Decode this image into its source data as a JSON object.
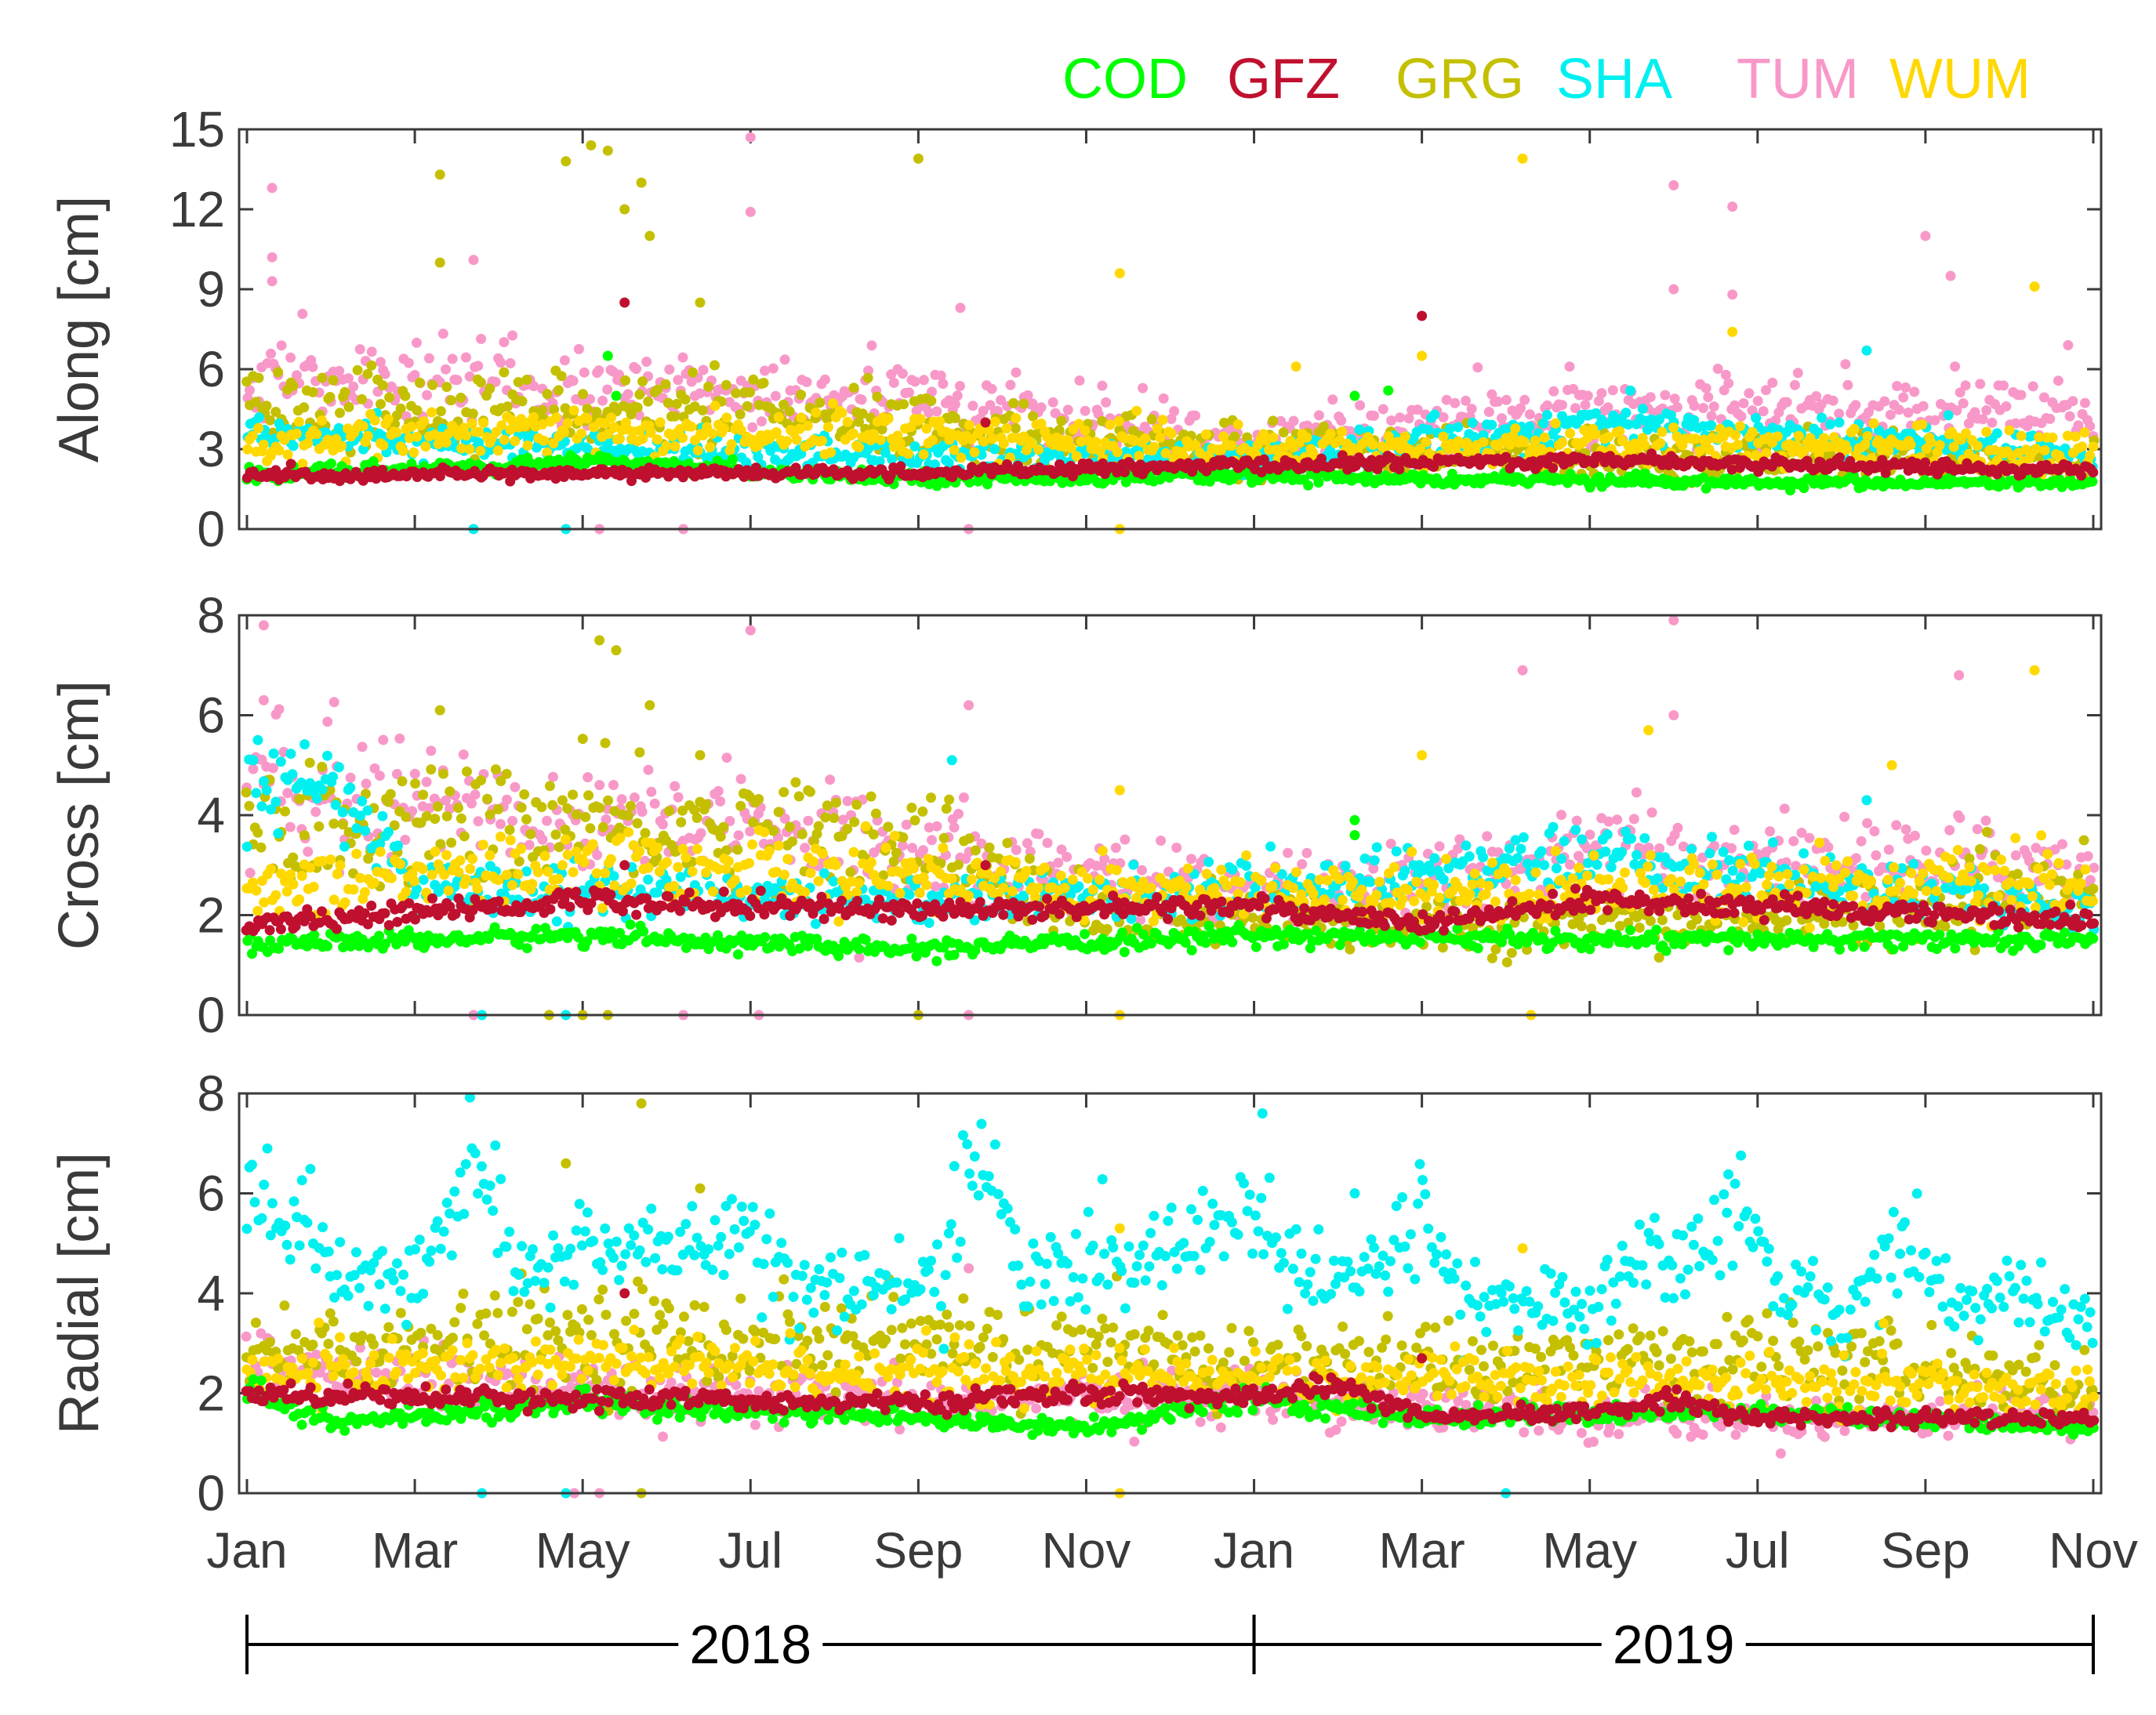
{
  "chart_data": {
    "type": "scatter",
    "legend": {
      "placement": "top-right",
      "entries": [
        {
          "name": "COD",
          "color": "#00ff00"
        },
        {
          "name": "GFZ",
          "color": "#c0102f"
        },
        {
          "name": "GRG",
          "color": "#c4c000"
        },
        {
          "name": "SHA",
          "color": "#00f0f0"
        },
        {
          "name": "TUM",
          "color": "#f898c8"
        },
        {
          "name": "WUM",
          "color": "#ffd800"
        }
      ]
    },
    "xaxis": {
      "unit": "month index since Jan 2018",
      "range": [
        0,
        22
      ],
      "ticks": [
        0,
        2,
        4,
        6,
        8,
        10,
        12,
        14,
        16,
        18,
        20,
        22
      ],
      "tick_labels": [
        "Jan",
        "Mar",
        "May",
        "Jul",
        "Sep",
        "Nov",
        "Jan",
        "Mar",
        "May",
        "Jul",
        "Sep",
        "Nov"
      ],
      "years": [
        {
          "label": "2018",
          "start": 0,
          "end": 12
        },
        {
          "label": "2019",
          "start": 12,
          "end": 22
        }
      ]
    },
    "panels": [
      {
        "name": "along",
        "ylabel": "Along [cm]",
        "ylim": [
          0,
          15
        ],
        "yticks": [
          0,
          3,
          6,
          9,
          12,
          15
        ],
        "ytick_labels": [
          "0",
          "3",
          "6",
          "9",
          "12",
          "15"
        ],
        "typical_levels": {
          "COD": [
            [
              0,
              2.0
            ],
            [
              4,
              2.5
            ],
            [
              8,
              1.9
            ],
            [
              12,
              2.0
            ],
            [
              16,
              1.8
            ],
            [
              22,
              1.7
            ]
          ],
          "GFZ": [
            [
              0,
              2.0
            ],
            [
              4,
              2.1
            ],
            [
              8,
              2.1
            ],
            [
              12,
              2.4
            ],
            [
              16,
              2.6
            ],
            [
              22,
              2.2
            ]
          ],
          "GRG": [
            [
              0,
              4.5
            ],
            [
              4,
              4.6
            ],
            [
              8,
              3.8
            ],
            [
              12,
              3.0
            ],
            [
              16,
              2.8
            ],
            [
              22,
              2.6
            ]
          ],
          "SHA": [
            [
              0,
              3.8
            ],
            [
              4,
              3.0
            ],
            [
              8,
              2.8
            ],
            [
              12,
              2.6
            ],
            [
              16,
              4.0
            ],
            [
              22,
              2.8
            ]
          ],
          "TUM": [
            [
              0,
              5.8
            ],
            [
              4,
              5.2
            ],
            [
              8,
              5.0
            ],
            [
              12,
              3.2
            ],
            [
              16,
              4.6
            ],
            [
              22,
              4.2
            ]
          ],
          "WUM": [
            [
              0,
              3.2
            ],
            [
              4,
              3.6
            ],
            [
              8,
              3.6
            ],
            [
              12,
              3.0
            ],
            [
              16,
              3.2
            ],
            [
              22,
              3.0
            ]
          ]
        },
        "outliers": {
          "COD": [
            [
              4.3,
              6.5
            ],
            [
              4.4,
              5.0
            ],
            [
              13.2,
              5.0
            ],
            [
              13.6,
              5.2
            ]
          ],
          "GFZ": [
            [
              4.5,
              8.5
            ],
            [
              8.8,
              4.0
            ],
            [
              14.0,
              8.0
            ]
          ],
          "GRG": [
            [
              2.3,
              13.3
            ],
            [
              4.1,
              14.4
            ],
            [
              4.3,
              14.2
            ],
            [
              4.5,
              12.0
            ],
            [
              4.7,
              13.0
            ],
            [
              4.8,
              11.0
            ],
            [
              3.8,
              13.8
            ],
            [
              2.3,
              10.0
            ],
            [
              8.0,
              13.9
            ],
            [
              5.4,
              8.5
            ]
          ],
          "SHA": [
            [
              2.7,
              0.0
            ],
            [
              3.8,
              0.0
            ],
            [
              19.3,
              6.7
            ]
          ],
          "TUM": [
            [
              0.3,
              12.8
            ],
            [
              0.3,
              10.2
            ],
            [
              0.3,
              9.3
            ],
            [
              2.7,
              10.1
            ],
            [
              6.0,
              14.7
            ],
            [
              6.0,
              11.9
            ],
            [
              8.5,
              8.3
            ],
            [
              17.0,
              12.9
            ],
            [
              17.0,
              9.0
            ],
            [
              17.7,
              12.1
            ],
            [
              17.7,
              8.8
            ],
            [
              20.0,
              11.0
            ],
            [
              20.3,
              9.5
            ],
            [
              21.7,
              6.9
            ],
            [
              2.7,
              0.0
            ],
            [
              4.2,
              0.0
            ],
            [
              5.2,
              0.0
            ],
            [
              8.6,
              0.0
            ]
          ],
          "WUM": [
            [
              10.4,
              9.6
            ],
            [
              10.4,
              0.0
            ],
            [
              15.2,
              13.9
            ],
            [
              12.5,
              6.1
            ],
            [
              14.0,
              6.5
            ],
            [
              21.3,
              9.1
            ],
            [
              17.7,
              7.4
            ]
          ]
        }
      },
      {
        "name": "cross",
        "ylabel": "Cross [cm]",
        "ylim": [
          0,
          8
        ],
        "yticks": [
          0,
          2,
          4,
          6,
          8
        ],
        "ytick_labels": [
          "0",
          "2",
          "4",
          "6",
          "8"
        ],
        "typical_levels": {
          "COD": [
            [
              0,
              1.4
            ],
            [
              4,
              1.6
            ],
            [
              8,
              1.3
            ],
            [
              12,
              1.6
            ],
            [
              16,
              1.5
            ],
            [
              22,
              1.5
            ]
          ],
          "GFZ": [
            [
              0,
              1.8
            ],
            [
              4,
              2.3
            ],
            [
              8,
              2.1
            ],
            [
              12,
              2.2
            ],
            [
              14,
              1.8
            ],
            [
              16,
              2.3
            ],
            [
              22,
              1.9
            ]
          ],
          "GRG": [
            [
              0,
              3.8
            ],
            [
              4,
              3.8
            ],
            [
              8,
              3.5
            ],
            [
              10,
              2.0
            ],
            [
              16,
              1.8
            ],
            [
              22,
              2.4
            ]
          ],
          "SHA": [
            [
              0,
              4.6
            ],
            [
              1,
              4.6
            ],
            [
              2,
              2.6
            ],
            [
              8,
              2.3
            ],
            [
              12,
              2.5
            ],
            [
              16,
              3.2
            ],
            [
              22,
              2.1
            ]
          ],
          "TUM": [
            [
              0,
              4.6
            ],
            [
              4,
              4.0
            ],
            [
              8,
              3.4
            ],
            [
              12,
              2.4
            ],
            [
              16,
              3.2
            ],
            [
              22,
              3.0
            ]
          ],
          "WUM": [
            [
              0,
              2.5
            ],
            [
              4,
              3.0
            ],
            [
              8,
              2.8
            ],
            [
              12,
              2.4
            ],
            [
              16,
              2.6
            ],
            [
              22,
              2.6
            ]
          ]
        },
        "outliers": {
          "COD": [
            [
              13.2,
              3.9
            ],
            [
              13.2,
              3.6
            ]
          ],
          "GFZ": [
            [
              4.5,
              3.0
            ],
            [
              8.8,
              3.0
            ]
          ],
          "GRG": [
            [
              4.2,
              7.5
            ],
            [
              4.4,
              7.3
            ],
            [
              2.3,
              6.1
            ],
            [
              4.8,
              6.2
            ],
            [
              5.4,
              5.2
            ],
            [
              4.0,
              0.0
            ],
            [
              4.3,
              0.0
            ],
            [
              8.0,
              0.0
            ],
            [
              3.6,
              0.0
            ]
          ],
          "SHA": [
            [
              2.8,
              0.0
            ],
            [
              3.8,
              0.0
            ],
            [
              8.4,
              5.1
            ],
            [
              19.3,
              4.3
            ]
          ],
          "TUM": [
            [
              0.2,
              7.8
            ],
            [
              0.2,
              6.3
            ],
            [
              6.0,
              7.7
            ],
            [
              8.6,
              6.2
            ],
            [
              15.2,
              6.9
            ],
            [
              17.0,
              7.9
            ],
            [
              17.0,
              6.0
            ],
            [
              20.4,
              6.8
            ],
            [
              2.7,
              0.0
            ],
            [
              5.2,
              0.0
            ],
            [
              6.1,
              0.0
            ],
            [
              8.6,
              0.0
            ]
          ],
          "WUM": [
            [
              10.4,
              4.5
            ],
            [
              14.0,
              5.2
            ],
            [
              16.7,
              5.7
            ],
            [
              21.3,
              6.9
            ],
            [
              19.6,
              5.0
            ],
            [
              10.4,
              0.0
            ],
            [
              15.3,
              0.0
            ]
          ]
        }
      },
      {
        "name": "radial",
        "ylabel": "Radial [cm]",
        "ylim": [
          0,
          8
        ],
        "yticks": [
          0,
          2,
          4,
          6,
          8
        ],
        "ytick_labels": [
          "0",
          "2",
          "4",
          "6",
          "8"
        ],
        "typical_levels": {
          "COD": [
            [
              0,
              2.1
            ],
            [
              1,
              1.4
            ],
            [
              4,
              1.8
            ],
            [
              8,
              1.5
            ],
            [
              10,
              1.3
            ],
            [
              12,
              1.9
            ],
            [
              14,
              1.5
            ],
            [
              16,
              1.6
            ],
            [
              18,
              1.6
            ],
            [
              22,
              1.3
            ]
          ],
          "GFZ": [
            [
              0,
              2.0
            ],
            [
              4,
              1.9
            ],
            [
              8,
              1.8
            ],
            [
              10,
              2.0
            ],
            [
              12,
              1.9
            ],
            [
              13,
              2.2
            ],
            [
              14,
              1.5
            ],
            [
              16,
              1.6
            ],
            [
              17,
              1.9
            ],
            [
              18,
              1.5
            ],
            [
              22,
              1.5
            ]
          ],
          "GRG": [
            [
              0,
              2.9
            ],
            [
              2,
              2.9
            ],
            [
              4,
              3.2
            ],
            [
              8,
              3.0
            ],
            [
              12,
              2.6
            ],
            [
              16,
              2.6
            ],
            [
              18,
              2.8
            ],
            [
              22,
              2.1
            ]
          ],
          "SHA": [
            [
              0,
              5.8
            ],
            [
              0.7,
              5.4
            ],
            [
              1.2,
              4.2
            ],
            [
              2.0,
              4.1
            ],
            [
              2.5,
              6.1
            ],
            [
              2.8,
              6.8
            ],
            [
              3.2,
              4.2
            ],
            [
              4.0,
              5.0
            ],
            [
              5.0,
              4.8
            ],
            [
              6.0,
              5.5
            ],
            [
              6.5,
              4.0
            ],
            [
              7.5,
              4.2
            ],
            [
              8.3,
              4.1
            ],
            [
              8.5,
              6.6
            ],
            [
              8.9,
              6.5
            ],
            [
              9.2,
              4.3
            ],
            [
              10.0,
              4.5
            ],
            [
              11.0,
              4.8
            ],
            [
              11.9,
              5.9
            ],
            [
              12.5,
              4.2
            ],
            [
              13.5,
              4.4
            ],
            [
              14.0,
              5.8
            ],
            [
              14.5,
              3.8
            ],
            [
              15.0,
              3.9
            ],
            [
              16.0,
              3.6
            ],
            [
              16.7,
              5.0
            ],
            [
              17.0,
              4.5
            ],
            [
              17.8,
              5.7
            ],
            [
              18.3,
              4.2
            ],
            [
              19.0,
              3.5
            ],
            [
              19.8,
              5.3
            ],
            [
              20.3,
              3.7
            ],
            [
              21.0,
              4.0
            ],
            [
              21.5,
              3.6
            ]
          ],
          "TUM": [
            [
              0,
              2.6
            ],
            [
              4,
              2.0
            ],
            [
              8,
              1.8
            ],
            [
              12,
              2.0
            ],
            [
              16,
              1.6
            ],
            [
              18,
              1.5
            ],
            [
              22,
              1.6
            ]
          ],
          "WUM": [
            [
              0,
              2.4
            ],
            [
              4,
              2.6
            ],
            [
              8,
              2.4
            ],
            [
              12,
              2.3
            ],
            [
              16,
              2.2
            ],
            [
              22,
              2.1
            ]
          ]
        },
        "outliers": {
          "GFZ": [
            [
              4.5,
              4.0
            ],
            [
              14.0,
              2.7
            ]
          ],
          "GRG": [
            [
              4.7,
              7.8
            ],
            [
              3.8,
              6.6
            ],
            [
              5.4,
              6.1
            ],
            [
              4.7,
              0.0
            ]
          ],
          "SHA": [
            [
              12.1,
              7.6
            ],
            [
              2.8,
              0.0
            ],
            [
              3.8,
              0.0
            ],
            [
              15.0,
              0.0
            ],
            [
              13.2,
              6.0
            ]
          ],
          "TUM": [
            [
              3.9,
              0.0
            ],
            [
              4.2,
              0.0
            ],
            [
              8.6,
              4.5
            ]
          ],
          "WUM": [
            [
              10.4,
              5.3
            ],
            [
              10.4,
              0.0
            ],
            [
              15.2,
              4.9
            ],
            [
              19.5,
              3.4
            ]
          ]
        }
      }
    ]
  }
}
